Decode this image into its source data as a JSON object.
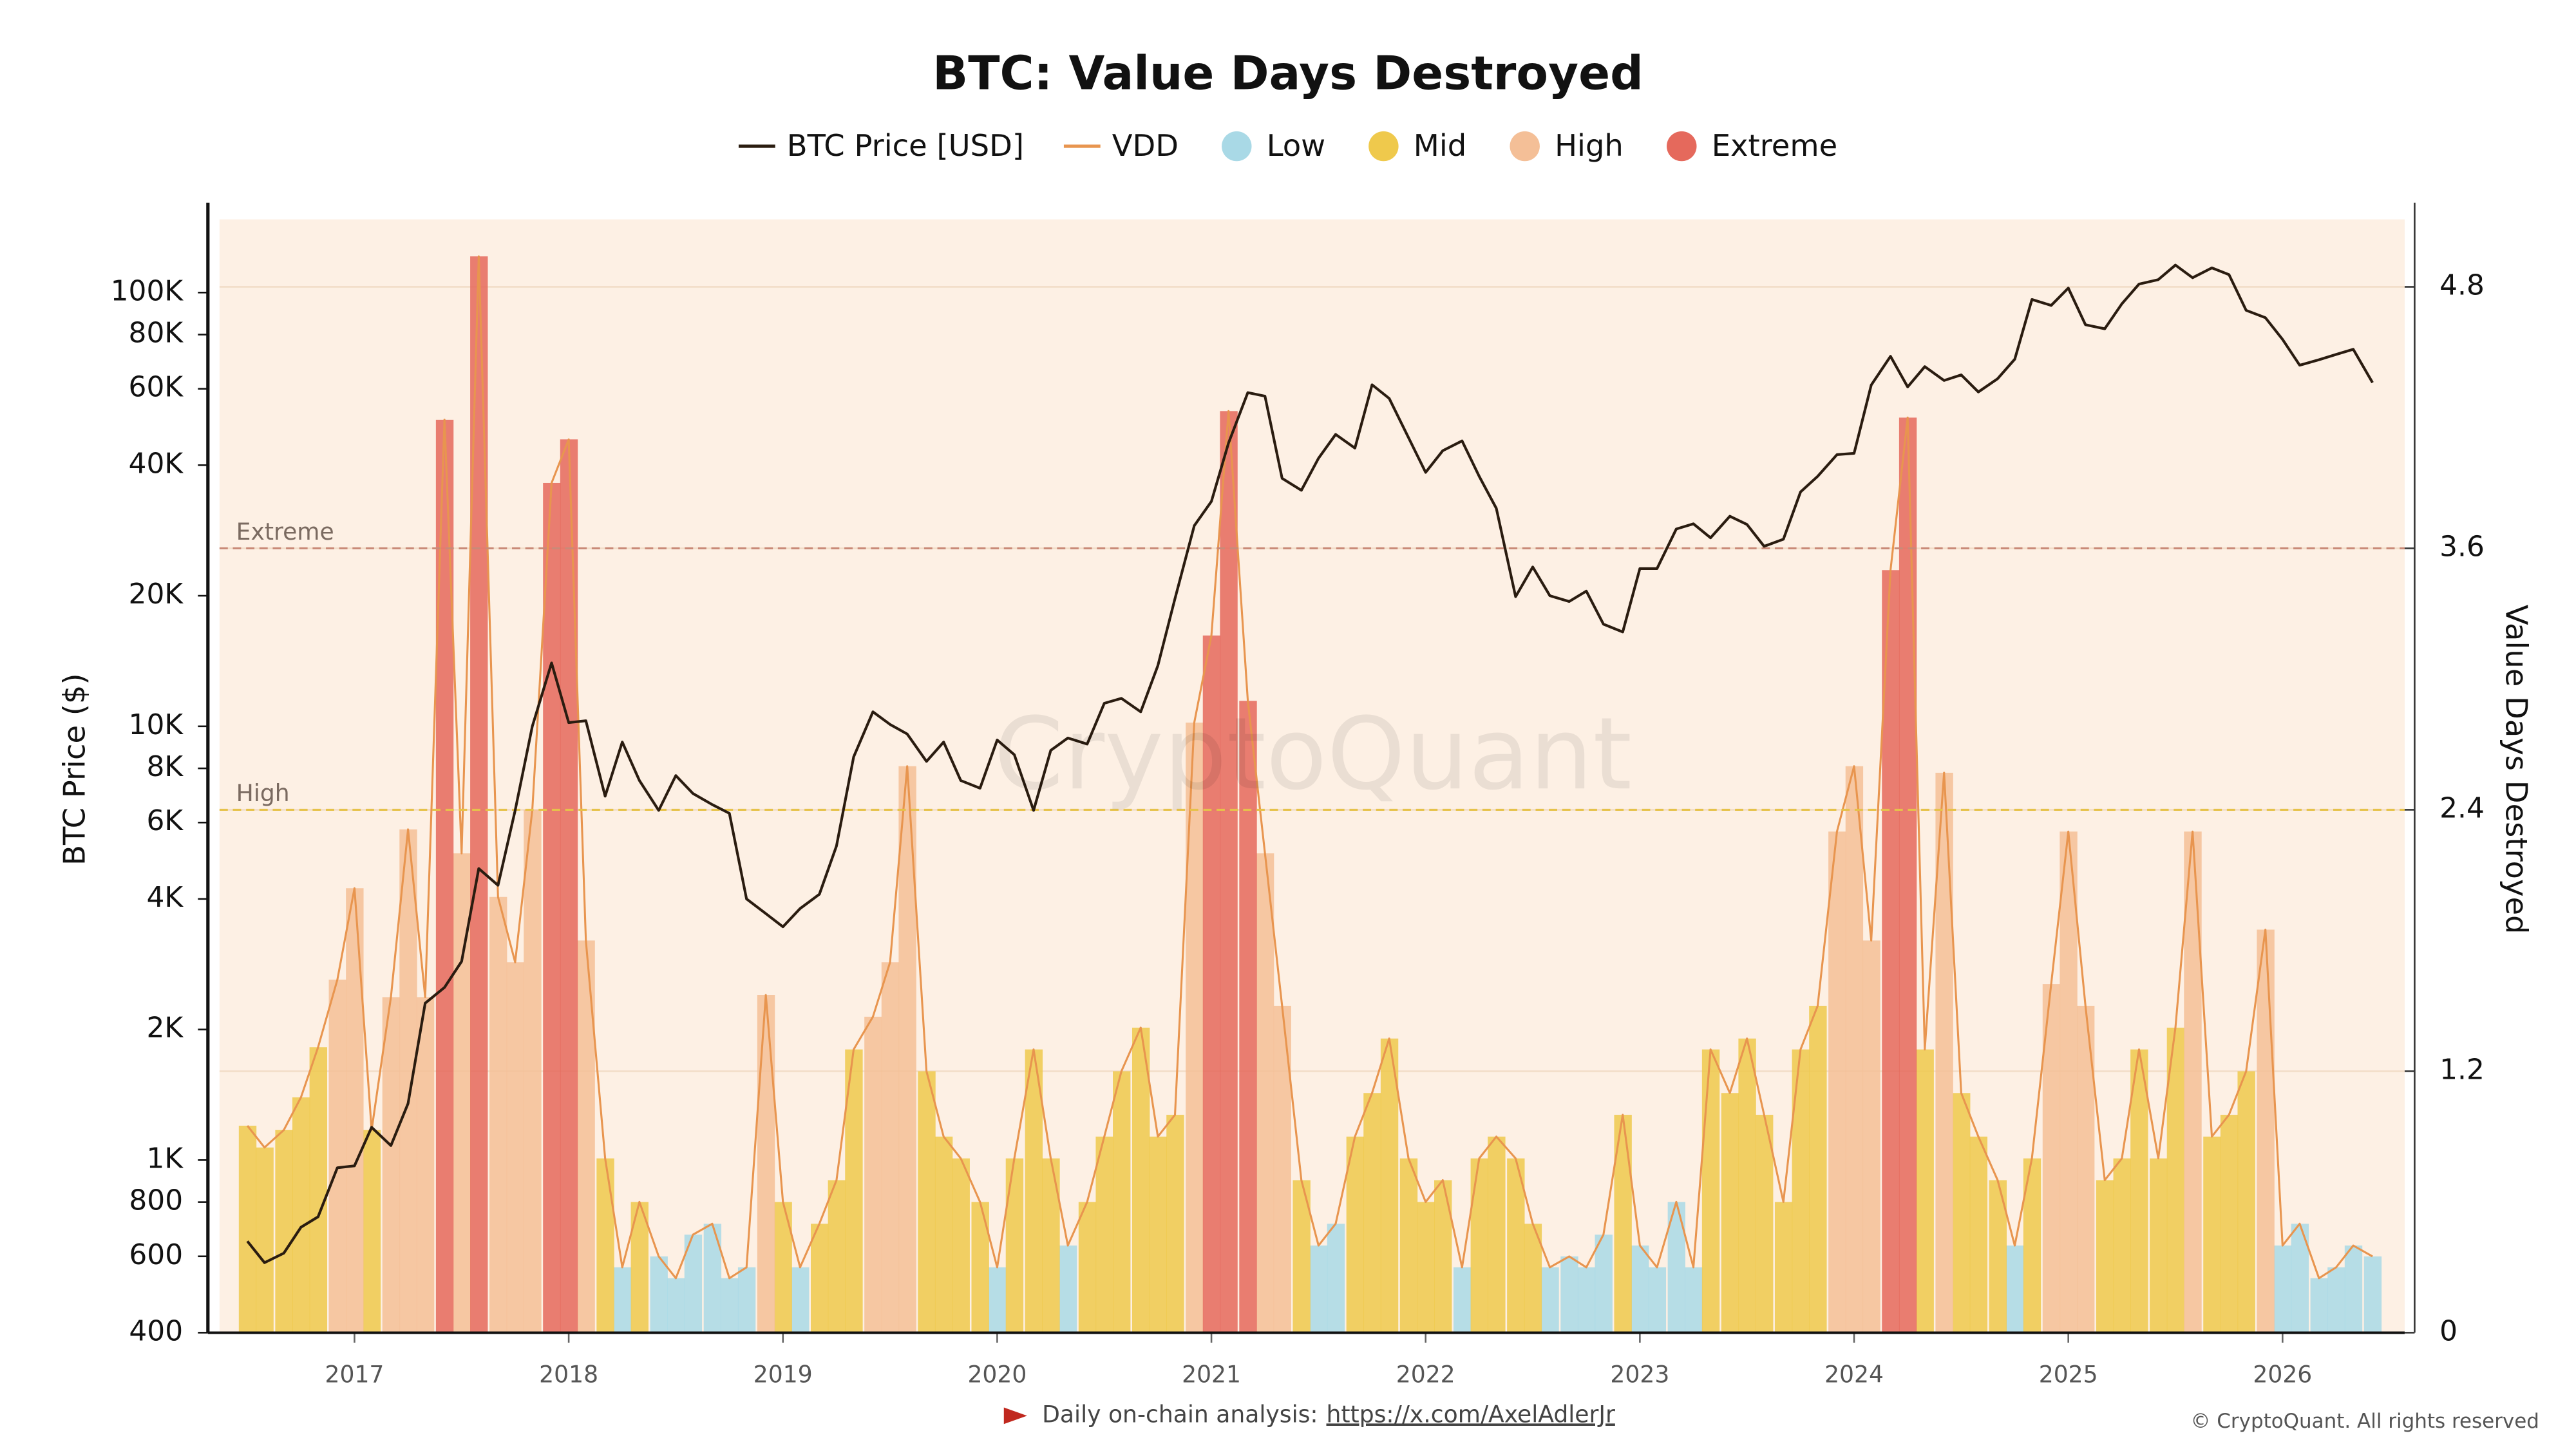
{
  "chart_data": {
    "type": "combo",
    "title": "BTC: Value Days Destroyed",
    "legend": "top",
    "grid": true,
    "yscale": "log",
    "y_label": "BTC Price ($)",
    "y2_label": "Value Days Destroyed",
    "watermark": "CryptoQuant",
    "footer": {
      "text": "Daily on-chain analysis:",
      "link": "https://x.com/AxelAdlerJr"
    },
    "copyright": "© CryptoQuant. All rights reserved",
    "xlim": [
      2016.37,
      2026.57
    ],
    "xticks": [
      2017,
      2018,
      2019,
      2020,
      2021,
      2022,
      2023,
      2024,
      2025,
      2026
    ],
    "ylim": [
      400,
      147500
    ],
    "yticks": [
      400,
      600,
      800,
      {
        "value": 1000,
        "label": "1K"
      },
      {
        "value": 2000,
        "label": "2K"
      },
      {
        "value": 4000,
        "label": "4K"
      },
      {
        "value": 6000,
        "label": "6K"
      },
      {
        "value": 8000,
        "label": "8K"
      },
      {
        "value": 10000,
        "label": "10K"
      },
      {
        "value": 20000,
        "label": "20K"
      },
      {
        "value": 40000,
        "label": "40K"
      },
      {
        "value": 60000,
        "label": "60K"
      },
      {
        "value": 80000,
        "label": "80K"
      },
      {
        "value": 100000,
        "label": "100K"
      }
    ],
    "y2lim": [
      0,
      5.11
    ],
    "y2ticks": [
      0,
      1.2,
      2.4,
      3.6,
      4.8
    ],
    "reference_lines": [
      {
        "label": "Extreme",
        "value": 3.6,
        "color": "#c98a78"
      },
      {
        "label": "High",
        "value": 2.4,
        "color": "#e6c24a"
      }
    ],
    "x": [
      2016.5,
      2016.58,
      2016.67,
      2016.75,
      2016.83,
      2016.92,
      2017.0,
      2017.08,
      2017.17,
      2017.25,
      2017.33,
      2017.42,
      2017.5,
      2017.58,
      2017.67,
      2017.75,
      2017.83,
      2017.92,
      2018.0,
      2018.08,
      2018.17,
      2018.25,
      2018.33,
      2018.42,
      2018.5,
      2018.58,
      2018.67,
      2018.75,
      2018.83,
      2018.92,
      2019.0,
      2019.08,
      2019.17,
      2019.25,
      2019.33,
      2019.42,
      2019.5,
      2019.58,
      2019.67,
      2019.75,
      2019.83,
      2019.92,
      2020.0,
      2020.08,
      2020.17,
      2020.25,
      2020.33,
      2020.42,
      2020.5,
      2020.58,
      2020.67,
      2020.75,
      2020.83,
      2020.92,
      2021.0,
      2021.08,
      2021.17,
      2021.25,
      2021.33,
      2021.42,
      2021.5,
      2021.58,
      2021.67,
      2021.75,
      2021.83,
      2021.92,
      2022.0,
      2022.08,
      2022.17,
      2022.25,
      2022.33,
      2022.42,
      2022.5,
      2022.58,
      2022.67,
      2022.75,
      2022.83,
      2022.92,
      2023.0,
      2023.08,
      2023.17,
      2023.25,
      2023.33,
      2023.42,
      2023.5,
      2023.58,
      2023.67,
      2023.75,
      2023.83,
      2023.92,
      2024.0,
      2024.08,
      2024.17,
      2024.25,
      2024.33,
      2024.42,
      2024.5,
      2024.58,
      2024.67,
      2024.75,
      2024.83,
      2024.92,
      2025.0,
      2025.08,
      2025.17,
      2025.25,
      2025.33,
      2025.42,
      2025.5,
      2025.58,
      2025.67,
      2025.75,
      2025.83,
      2025.92,
      2026.0,
      2026.08,
      2026.17,
      2026.25,
      2026.33,
      2026.42
    ],
    "series": [
      {
        "name": "BTC Price [USD]",
        "type": "line",
        "color": "#2a1c10",
        "axis": "y",
        "values": [
          650,
          580,
          610,
          700,
          740,
          960,
          970,
          1190,
          1080,
          1350,
          2300,
          2500,
          2870,
          4700,
          4300,
          6400,
          10000,
          14000,
          10200,
          10300,
          6900,
          9200,
          7500,
          6400,
          7700,
          7000,
          6600,
          6300,
          4000,
          3700,
          3450,
          3800,
          4100,
          5300,
          8500,
          10800,
          10100,
          9600,
          8300,
          9200,
          7500,
          7200,
          9300,
          8600,
          6400,
          8800,
          9400,
          9100,
          11300,
          11600,
          10800,
          13800,
          19700,
          29000,
          33000,
          45000,
          58800,
          57700,
          37300,
          35000,
          41500,
          47100,
          43800,
          61300,
          57000,
          46300,
          38500,
          43200,
          45500,
          37700,
          31800,
          19900,
          23300,
          20000,
          19400,
          20500,
          17200,
          16500,
          23100,
          23100,
          28500,
          29300,
          27200,
          30500,
          29200,
          26000,
          27000,
          34700,
          37700,
          42300,
          42600,
          61200,
          71300,
          60600,
          67500,
          62700,
          64600,
          59000,
          63300,
          70200,
          96400,
          93400,
          102400,
          84300,
          82500,
          94200,
          104600,
          107100,
          115700,
          108200,
          114000,
          110000,
          91000,
          87500,
          78000,
          68000,
          70000,
          72000,
          74000,
          62000
        ]
      },
      {
        "name": "VDD",
        "type": "line",
        "color": "#e8954f",
        "axis": "y2",
        "values": [
          0.95,
          0.85,
          0.93,
          1.08,
          1.31,
          1.62,
          2.04,
          0.93,
          1.54,
          2.31,
          1.54,
          4.19,
          2.2,
          4.94,
          2.0,
          1.7,
          2.4,
          3.9,
          4.1,
          1.8,
          0.8,
          0.3,
          0.6,
          0.35,
          0.25,
          0.45,
          0.5,
          0.25,
          0.3,
          1.55,
          0.6,
          0.3,
          0.5,
          0.7,
          1.3,
          1.45,
          1.7,
          2.6,
          1.2,
          0.9,
          0.8,
          0.6,
          0.3,
          0.8,
          1.3,
          0.8,
          0.4,
          0.6,
          0.9,
          1.2,
          1.4,
          0.9,
          1.0,
          2.8,
          3.2,
          4.23,
          2.9,
          2.2,
          1.5,
          0.7,
          0.4,
          0.5,
          0.9,
          1.1,
          1.35,
          0.8,
          0.6,
          0.7,
          0.3,
          0.8,
          0.9,
          0.8,
          0.5,
          0.3,
          0.35,
          0.3,
          0.45,
          1.0,
          0.4,
          0.3,
          0.6,
          0.3,
          1.3,
          1.1,
          1.35,
          1.0,
          0.6,
          1.3,
          1.5,
          2.3,
          2.6,
          1.8,
          3.5,
          4.2,
          1.3,
          2.57,
          1.1,
          0.9,
          0.7,
          0.4,
          0.8,
          1.6,
          2.3,
          1.5,
          0.7,
          0.8,
          1.3,
          0.8,
          1.4,
          2.3,
          0.9,
          1.0,
          1.2,
          1.85,
          0.4,
          0.5,
          0.25,
          0.3,
          0.4,
          0.35
        ]
      },
      {
        "name": "Low",
        "type": "bar",
        "color": "#a9d9e6",
        "axis": "y2",
        "values": [
          null,
          null,
          null,
          null,
          null,
          null,
          null,
          null,
          null,
          null,
          null,
          null,
          null,
          null,
          null,
          null,
          null,
          null,
          null,
          null,
          null,
          0.3,
          null,
          0.35,
          0.25,
          0.45,
          0.5,
          0.25,
          0.3,
          null,
          null,
          0.3,
          null,
          null,
          null,
          null,
          null,
          null,
          null,
          null,
          null,
          null,
          0.3,
          null,
          null,
          null,
          0.4,
          null,
          null,
          null,
          null,
          null,
          null,
          null,
          null,
          null,
          null,
          null,
          null,
          null,
          0.4,
          0.5,
          null,
          null,
          null,
          null,
          null,
          null,
          0.3,
          null,
          null,
          null,
          null,
          0.3,
          0.35,
          0.3,
          0.45,
          null,
          0.4,
          0.3,
          0.6,
          0.3,
          null,
          null,
          null,
          null,
          null,
          null,
          null,
          null,
          null,
          null,
          null,
          null,
          null,
          null,
          null,
          null,
          null,
          0.4,
          null,
          null,
          null,
          null,
          null,
          null,
          null,
          null,
          null,
          null,
          null,
          null,
          null,
          null,
          0.4,
          0.5,
          0.25,
          0.3,
          0.4,
          0.35
        ]
      },
      {
        "name": "Mid",
        "type": "bar",
        "color": "#efc94c",
        "axis": "y2",
        "values": [
          0.95,
          0.85,
          0.93,
          1.08,
          1.31,
          null,
          null,
          0.93,
          null,
          null,
          null,
          null,
          null,
          null,
          null,
          null,
          null,
          null,
          null,
          null,
          0.8,
          null,
          0.6,
          null,
          null,
          null,
          null,
          null,
          null,
          null,
          0.6,
          null,
          0.5,
          0.7,
          1.3,
          null,
          null,
          null,
          1.2,
          0.9,
          0.8,
          0.6,
          null,
          0.8,
          1.3,
          0.8,
          null,
          0.6,
          0.9,
          1.2,
          1.4,
          0.9,
          1.0,
          null,
          null,
          null,
          null,
          null,
          null,
          0.7,
          null,
          null,
          0.9,
          1.1,
          1.35,
          0.8,
          0.6,
          0.7,
          null,
          0.8,
          0.9,
          0.8,
          0.5,
          null,
          null,
          null,
          null,
          1.0,
          null,
          null,
          null,
          null,
          1.3,
          1.1,
          1.35,
          1.0,
          0.6,
          1.3,
          1.5,
          null,
          null,
          null,
          null,
          null,
          1.3,
          null,
          1.1,
          0.9,
          0.7,
          null,
          0.8,
          null,
          null,
          null,
          0.7,
          0.8,
          1.3,
          0.8,
          1.4,
          null,
          0.9,
          1.0,
          1.2,
          null,
          null,
          null,
          null,
          null,
          null,
          null
        ]
      },
      {
        "name": "High",
        "type": "bar",
        "color": "#f4bf97",
        "axis": "y2",
        "values": [
          null,
          null,
          null,
          null,
          null,
          1.62,
          2.04,
          null,
          1.54,
          2.31,
          1.54,
          null,
          2.2,
          null,
          2.0,
          1.7,
          2.4,
          null,
          null,
          1.8,
          null,
          null,
          null,
          null,
          null,
          null,
          null,
          null,
          null,
          1.55,
          null,
          null,
          null,
          null,
          null,
          1.45,
          1.7,
          2.6,
          null,
          null,
          null,
          null,
          null,
          null,
          null,
          null,
          null,
          null,
          null,
          null,
          null,
          null,
          null,
          2.8,
          null,
          null,
          null,
          2.2,
          1.5,
          null,
          null,
          null,
          null,
          null,
          null,
          null,
          null,
          null,
          null,
          null,
          null,
          null,
          null,
          null,
          null,
          null,
          null,
          null,
          null,
          null,
          null,
          null,
          null,
          null,
          null,
          null,
          null,
          null,
          null,
          2.3,
          2.6,
          1.8,
          null,
          null,
          null,
          2.57,
          null,
          null,
          null,
          null,
          null,
          1.6,
          2.3,
          1.5,
          null,
          null,
          null,
          null,
          null,
          2.3,
          null,
          null,
          null,
          1.85,
          null,
          null,
          null,
          null,
          null,
          null
        ]
      },
      {
        "name": "Extreme",
        "type": "bar",
        "color": "#e5695c",
        "axis": "y2",
        "values": [
          null,
          null,
          null,
          null,
          null,
          null,
          null,
          null,
          null,
          null,
          null,
          4.19,
          null,
          4.94,
          null,
          null,
          null,
          3.9,
          4.1,
          null,
          null,
          null,
          null,
          null,
          null,
          null,
          null,
          null,
          null,
          null,
          null,
          null,
          null,
          null,
          null,
          null,
          null,
          null,
          null,
          null,
          null,
          null,
          null,
          null,
          null,
          null,
          null,
          null,
          null,
          null,
          null,
          null,
          null,
          null,
          3.2,
          4.23,
          2.9,
          null,
          null,
          null,
          null,
          null,
          null,
          null,
          null,
          null,
          null,
          null,
          null,
          null,
          null,
          null,
          null,
          null,
          null,
          null,
          null,
          null,
          null,
          null,
          null,
          null,
          null,
          null,
          null,
          null,
          null,
          null,
          null,
          null,
          null,
          null,
          3.5,
          4.2,
          null,
          null,
          null,
          null,
          null,
          null,
          null,
          null,
          null,
          null,
          null,
          null,
          null,
          null,
          null,
          null,
          null,
          null,
          null,
          null,
          null,
          null,
          null,
          null,
          null,
          null
        ]
      }
    ]
  }
}
